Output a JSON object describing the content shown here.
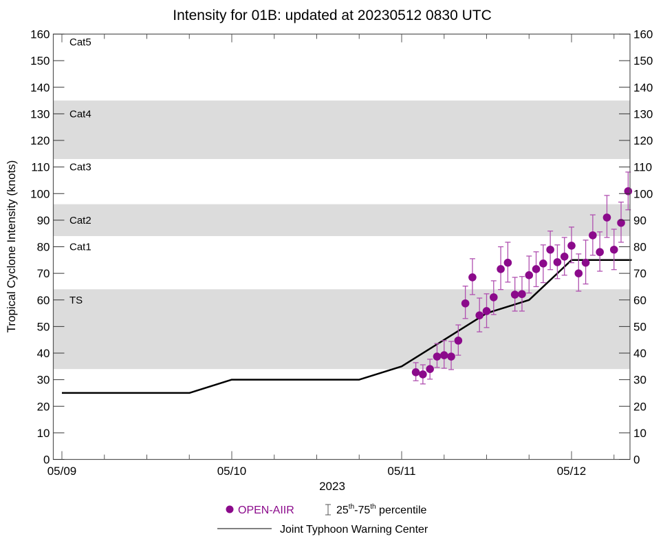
{
  "chart_data": {
    "type": "scatter",
    "title": "Intensity for 01B: updated at 20230512 0830 UTC",
    "xlabel": "2023",
    "ylabel": "Tropical Cyclone Intensity (knots)",
    "x_units": "hours since 05/09 00Z",
    "xlim": [
      0,
      80.5
    ],
    "ylim": [
      0,
      160
    ],
    "yticks": [
      0,
      10,
      20,
      30,
      40,
      50,
      60,
      70,
      80,
      90,
      100,
      110,
      120,
      130,
      140,
      150,
      160
    ],
    "xticks_major": [
      {
        "hour": 0,
        "label": "05/09"
      },
      {
        "hour": 24,
        "label": "05/10"
      },
      {
        "hour": 48,
        "label": "05/11"
      },
      {
        "hour": 72,
        "label": "05/12"
      }
    ],
    "xtick_minor_interval_hours": 6,
    "grid": false,
    "category_bands": [
      {
        "label": "TS",
        "low": 34,
        "high": 64,
        "shaded": true
      },
      {
        "label": "Cat1",
        "low": 64,
        "high": 84,
        "shaded": false
      },
      {
        "label": "Cat2",
        "low": 84,
        "high": 96,
        "shaded": true
      },
      {
        "label": "Cat3",
        "low": 96,
        "high": 113,
        "shaded": false
      },
      {
        "label": "Cat4",
        "low": 113,
        "high": 135,
        "shaded": true
      },
      {
        "label": "Cat5",
        "low": 135,
        "high": 160,
        "shaded": false
      }
    ],
    "category_label_values": [
      {
        "label": "Cat5",
        "y": 157
      },
      {
        "label": "Cat4",
        "y": 130
      },
      {
        "label": "Cat3",
        "y": 110
      },
      {
        "label": "Cat2",
        "y": 90
      },
      {
        "label": "Cat1",
        "y": 80
      },
      {
        "label": "TS",
        "y": 60
      }
    ],
    "series": [
      {
        "name": "OPEN-AIIR",
        "kind": "points_with_errorbars",
        "color": "#8b0a8b",
        "errorbar_color": "#b050b0",
        "points": [
          {
            "hour": 50,
            "value": 32.8,
            "p25": 29.6,
            "p75": 36.4
          },
          {
            "hour": 51,
            "value": 32.0,
            "p25": 28.4,
            "p75": 35.6
          },
          {
            "hour": 52,
            "value": 34.0,
            "p25": 30.2,
            "p75": 37.7
          },
          {
            "hour": 53,
            "value": 38.7,
            "p25": 34.6,
            "p75": 43.6
          },
          {
            "hour": 54,
            "value": 39.2,
            "p25": 34.3,
            "p75": 44.7
          },
          {
            "hour": 55,
            "value": 38.7,
            "p25": 33.8,
            "p75": 44.4
          },
          {
            "hour": 56,
            "value": 44.7,
            "p25": 39.2,
            "p75": 50.6
          },
          {
            "hour": 57,
            "value": 58.7,
            "p25": 53.0,
            "p75": 65.2
          },
          {
            "hour": 58,
            "value": 68.5,
            "p25": 62.0,
            "p75": 75.5
          },
          {
            "hour": 59,
            "value": 54.2,
            "p25": 48.0,
            "p75": 60.7
          },
          {
            "hour": 60,
            "value": 55.8,
            "p25": 49.6,
            "p75": 62.3
          },
          {
            "hour": 61,
            "value": 61.0,
            "p25": 54.5,
            "p75": 67.2
          },
          {
            "hour": 62,
            "value": 71.6,
            "p25": 63.9,
            "p75": 80.0
          },
          {
            "hour": 63,
            "value": 74.0,
            "p25": 66.7,
            "p75": 81.7
          },
          {
            "hour": 64,
            "value": 62.0,
            "p25": 55.8,
            "p75": 68.5
          },
          {
            "hour": 65,
            "value": 62.2,
            "p25": 55.8,
            "p75": 68.8
          },
          {
            "hour": 66,
            "value": 69.3,
            "p25": 62.6,
            "p75": 76.5
          },
          {
            "hour": 67,
            "value": 71.6,
            "p25": 65.0,
            "p75": 78.1
          },
          {
            "hour": 68,
            "value": 73.7,
            "p25": 66.5,
            "p75": 80.7
          },
          {
            "hour": 69,
            "value": 78.9,
            "p25": 71.4,
            "p75": 85.9
          },
          {
            "hour": 70,
            "value": 74.2,
            "p25": 68.0,
            "p75": 80.7
          },
          {
            "hour": 71,
            "value": 76.3,
            "p25": 69.3,
            "p75": 83.5
          },
          {
            "hour": 72,
            "value": 80.4,
            "p25": 74.0,
            "p75": 87.4
          },
          {
            "hour": 73,
            "value": 70.0,
            "p25": 63.3,
            "p75": 77.3
          },
          {
            "hour": 74,
            "value": 74.0,
            "p25": 66.0,
            "p75": 82.5
          },
          {
            "hour": 75,
            "value": 84.3,
            "p25": 76.8,
            "p75": 92.0
          },
          {
            "hour": 76,
            "value": 78.0,
            "p25": 70.8,
            "p75": 85.6
          },
          {
            "hour": 77,
            "value": 91.0,
            "p25": 83.5,
            "p75": 99.3
          },
          {
            "hour": 78,
            "value": 78.9,
            "p25": 71.4,
            "p75": 86.6
          },
          {
            "hour": 79,
            "value": 89.0,
            "p25": 81.7,
            "p75": 96.8
          },
          {
            "hour": 80,
            "value": 100.9,
            "p25": 93.9,
            "p75": 108.1
          }
        ]
      },
      {
        "name": "Joint Typhoon Warning Center",
        "kind": "line",
        "color": "#000000",
        "points": [
          {
            "hour": 0,
            "value": 25
          },
          {
            "hour": 18,
            "value": 25
          },
          {
            "hour": 24,
            "value": 30
          },
          {
            "hour": 42,
            "value": 30
          },
          {
            "hour": 48,
            "value": 35
          },
          {
            "hour": 54,
            "value": 45
          },
          {
            "hour": 60,
            "value": 55
          },
          {
            "hour": 66,
            "value": 60
          },
          {
            "hour": 72,
            "value": 75
          },
          {
            "hour": 80.5,
            "value": 75
          }
        ]
      }
    ],
    "legend": {
      "placement": "bottom-center",
      "items": [
        {
          "label": "OPEN-AIIR",
          "symbol": "dot",
          "color": "#8b0a8b"
        },
        {
          "label_parts": [
            "25",
            "th",
            "-75",
            "th",
            " percentile"
          ],
          "symbol": "errorbar"
        },
        {
          "label": "Joint Typhoon Warning Center",
          "symbol": "line",
          "color": "#000000"
        }
      ]
    },
    "colors": {
      "band_fill": "#dcdcdc",
      "axis": "#555555"
    }
  }
}
